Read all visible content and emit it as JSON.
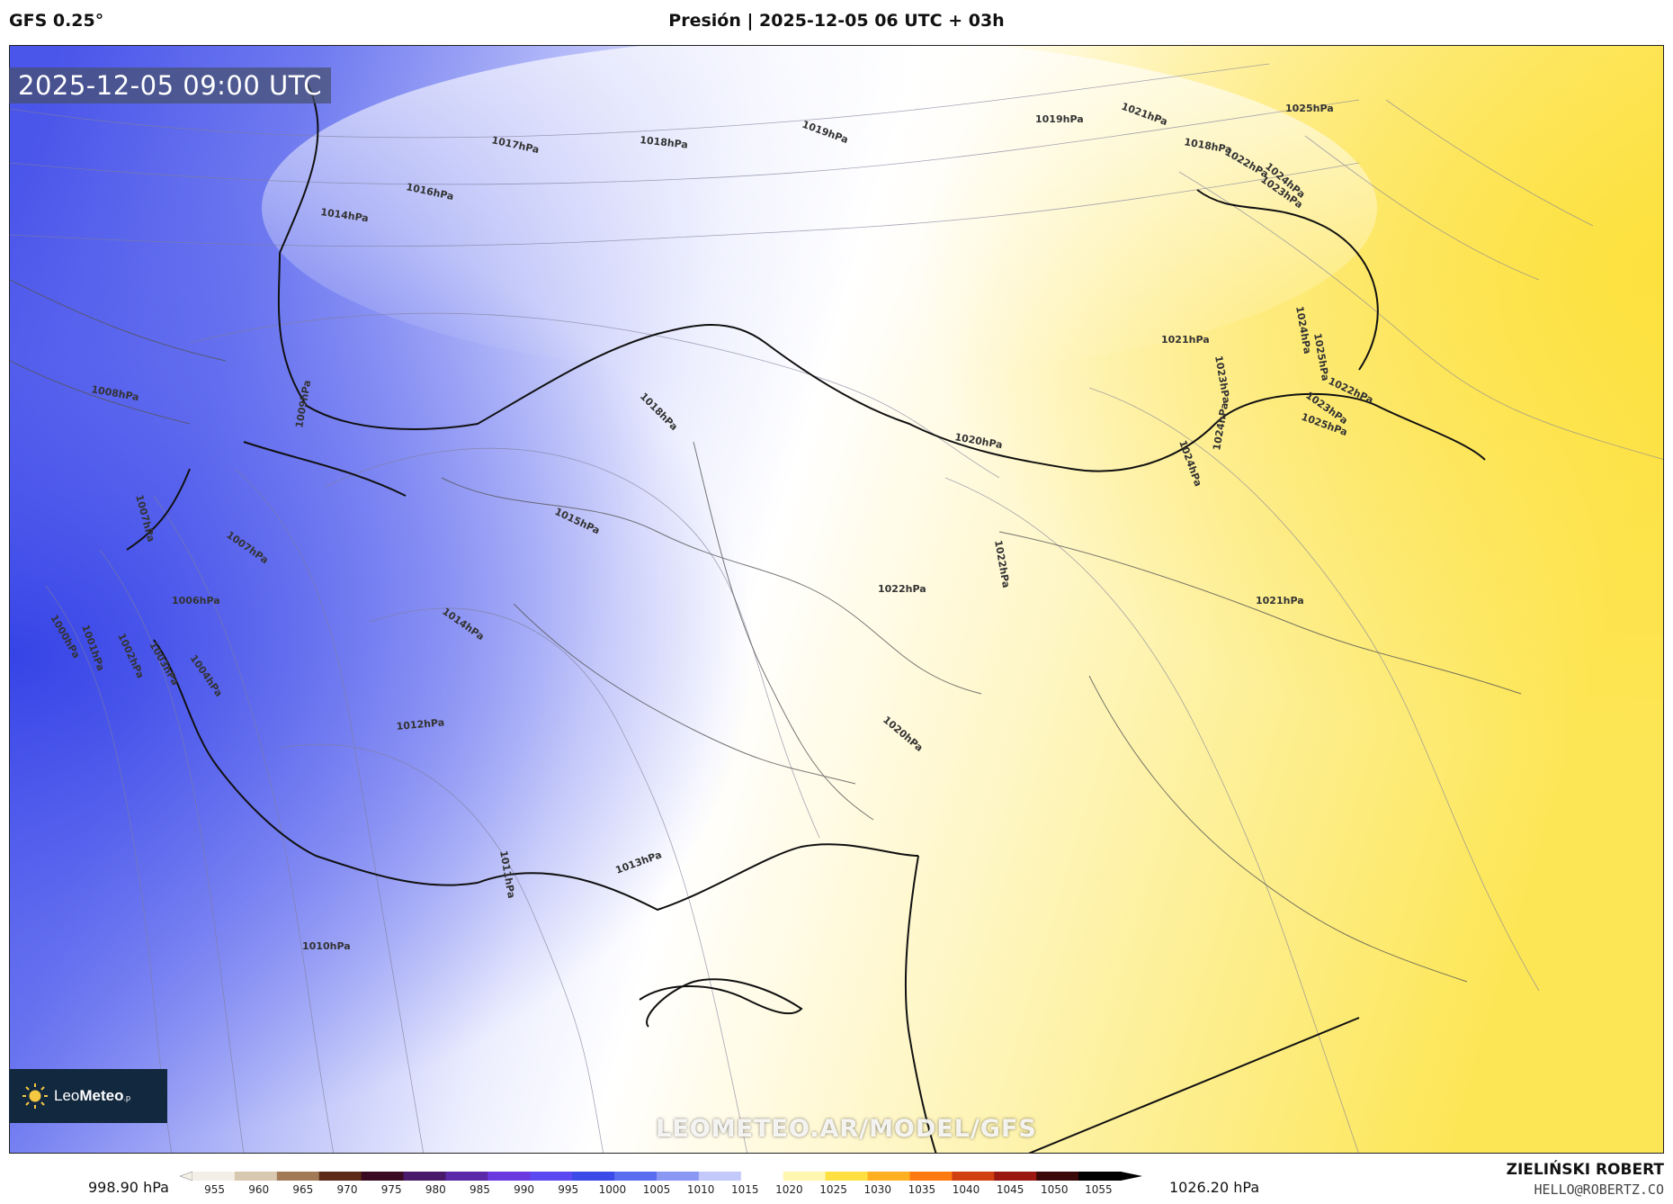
{
  "header": {
    "model": "GFS 0.25°",
    "title": "Presión | 2025-12-05 06 UTC + 03h"
  },
  "map": {
    "valid_time": "2025-12-05 09:00 UTC",
    "watermark": "LEOMETEO.AR/MODEL/GFS",
    "logo": {
      "icon": "sun-icon",
      "text_light": "Leo",
      "text_bold": "Meteo",
      "suffix": ".p"
    },
    "isobar_labels": [
      "1016hPa",
      "1017hPa",
      "1018hPa",
      "1019hPa",
      "1014hPa",
      "1021hPa",
      "1019hPa",
      "1018hPa",
      "1022hPa",
      "1024hPa",
      "1023hPa",
      "1025hPa",
      "1008hPa",
      "1009hPa",
      "1018hPa",
      "1015hPa",
      "1020hPa",
      "1021hPa",
      "1023hPa",
      "1024hPa",
      "1025hPa",
      "1022hPa",
      "1023hPa",
      "1024hPa",
      "1025hPa",
      "1024hPa",
      "1007hPa",
      "1007hPa",
      "1006hPa",
      "1000hPa",
      "1001hPa",
      "1002hPa",
      "1003hPa",
      "1004hPa",
      "1014hPa",
      "1022hPa",
      "1022hPa",
      "1021hPa",
      "1012hPa",
      "1020hPa",
      "1011hPa",
      "1013hPa",
      "1010hPa"
    ]
  },
  "colorbar": {
    "min_label": "998.90 hPa",
    "max_label": "1026.20 hPa",
    "ticks": [
      "955",
      "960",
      "965",
      "970",
      "975",
      "980",
      "985",
      "990",
      "995",
      "1000",
      "1005",
      "1010",
      "1015",
      "1020",
      "1025",
      "1030",
      "1035",
      "1040",
      "1045",
      "1050",
      "1055"
    ],
    "colors": [
      "#f4efe6",
      "#d9c8b0",
      "#a27a55",
      "#5c2a16",
      "#3a0a22",
      "#4a1a6a",
      "#5a2aa8",
      "#6a3ae0",
      "#5b48f0",
      "#3c4ae8",
      "#5a6cf0",
      "#8a98f4",
      "#c3c9fa",
      "#ffffff",
      "#fff6b0",
      "#ffe040",
      "#ffb020",
      "#ff7a10",
      "#d04010",
      "#9a1810",
      "#3a0808",
      "#000000"
    ]
  },
  "credits": {
    "name": "ZIELIŃSKI ROBERT",
    "email": "HELLO@ROBERTZ.CO"
  }
}
